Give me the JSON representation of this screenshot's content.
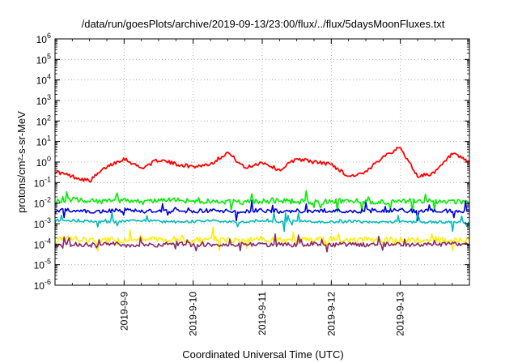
{
  "chart_data": {
    "type": "line",
    "title": "/data/run/goesPlots/archive/2019-09-13/23:00/flux/../flux/5daysMoonFluxes.txt",
    "xlabel": "Coordinated Universal Time (UTC)",
    "ylabel": "protons/cm²-s-sr-MeV",
    "y_scale": "log",
    "ylim": [
      1e-06,
      1000000.0
    ],
    "y_ticks": [
      {
        "value": 1e-06,
        "base": "10",
        "exp": "-6"
      },
      {
        "value": 1e-05,
        "base": "10",
        "exp": "-5"
      },
      {
        "value": 0.0001,
        "base": "10",
        "exp": "-4"
      },
      {
        "value": 0.001,
        "base": "10",
        "exp": "-3"
      },
      {
        "value": 0.01,
        "base": "10",
        "exp": "-2"
      },
      {
        "value": 0.1,
        "base": "10",
        "exp": "-1"
      },
      {
        "value": 1,
        "base": "10",
        "exp": "0"
      },
      {
        "value": 10,
        "base": "10",
        "exp": "1"
      },
      {
        "value": 100,
        "base": "10",
        "exp": "2"
      },
      {
        "value": 1000,
        "base": "10",
        "exp": "3"
      },
      {
        "value": 10000,
        "base": "10",
        "exp": "4"
      },
      {
        "value": 100000,
        "base": "10",
        "exp": "5"
      },
      {
        "value": 1000000,
        "base": "10",
        "exp": "6"
      }
    ],
    "x_range_days": [
      "2019-09-08 00:00",
      "2019-09-14 00:00"
    ],
    "x_ticks": [
      {
        "label": "2019-9-9"
      },
      {
        "label": "2019-9-10"
      },
      {
        "label": "2019-9-11"
      },
      {
        "label": "2019-9-12"
      },
      {
        "label": "2019-9-13"
      }
    ],
    "grid": true,
    "x": [
      "09-08 00:00",
      "09-08 06:00",
      "09-08 12:00",
      "09-08 18:00",
      "09-09 00:00",
      "09-09 06:00",
      "09-09 12:00",
      "09-09 18:00",
      "09-10 00:00",
      "09-10 06:00",
      "09-10 12:00",
      "09-10 18:00",
      "09-11 00:00",
      "09-11 06:00",
      "09-11 12:00",
      "09-11 18:00",
      "09-12 00:00",
      "09-12 06:00",
      "09-12 12:00",
      "09-12 18:00",
      "09-13 00:00",
      "09-13 06:00",
      "09-13 12:00",
      "09-13 18:00",
      "09-14 00:00"
    ],
    "series": [
      {
        "color": "#ff0000",
        "values": [
          0.35,
          0.2,
          0.12,
          0.6,
          1.5,
          0.5,
          1.3,
          0.8,
          0.6,
          0.8,
          3.0,
          0.5,
          1.0,
          0.4,
          1.5,
          1.0,
          0.8,
          0.2,
          0.3,
          2.0,
          5.0,
          0.2,
          0.3,
          2.5,
          1.0
        ]
      },
      {
        "color": "#00ee00",
        "values": [
          0.012,
          0.015,
          0.013,
          0.012,
          0.014,
          0.011,
          0.013,
          0.015,
          0.012,
          0.013,
          0.012,
          0.011,
          0.012,
          0.013,
          0.012,
          0.011,
          0.012,
          0.013,
          0.012,
          0.011,
          0.012,
          0.013,
          0.012,
          0.011,
          0.011
        ]
      },
      {
        "color": "#0000dd",
        "values": [
          0.004,
          0.0045,
          0.004,
          0.0042,
          0.0045,
          0.004,
          0.0042,
          0.0045,
          0.004,
          0.0045,
          0.0042,
          0.004,
          0.0045,
          0.004,
          0.0042,
          0.004,
          0.0045,
          0.004,
          0.0042,
          0.004,
          0.0045,
          0.004,
          0.0042,
          0.004,
          0.004
        ]
      },
      {
        "color": "#00bbbb",
        "values": [
          0.0013,
          0.0014,
          0.0013,
          0.0012,
          0.0013,
          0.0014,
          0.0013,
          0.0012,
          0.0013,
          0.0014,
          0.0013,
          0.0012,
          0.0013,
          0.0012,
          0.0013,
          0.0012,
          0.0012,
          0.0013,
          0.0012,
          0.0012,
          0.0013,
          0.0012,
          0.0012,
          0.0012,
          0.0012
        ]
      },
      {
        "color": "#ffee00",
        "values": [
          0.00015,
          0.0002,
          0.00015,
          0.00018,
          0.00015,
          0.0002,
          0.00016,
          0.00018,
          0.00015,
          0.0002,
          0.00016,
          0.00015,
          0.00018,
          0.00015,
          0.00016,
          0.00015,
          0.00018,
          0.00015,
          0.00016,
          0.00015,
          0.00018,
          0.00015,
          0.00016,
          0.00015,
          0.00015
        ]
      },
      {
        "color": "#8b2a6a",
        "values": [
          9e-05,
          0.0001,
          9e-05,
          0.00011,
          9e-05,
          0.0001,
          9e-05,
          0.00011,
          9e-05,
          0.0001,
          9e-05,
          0.00011,
          9e-05,
          0.0001,
          9e-05,
          0.00011,
          9e-05,
          0.0001,
          9e-05,
          0.00011,
          9e-05,
          0.0001,
          9e-05,
          0.00011,
          9e-05
        ]
      }
    ]
  }
}
